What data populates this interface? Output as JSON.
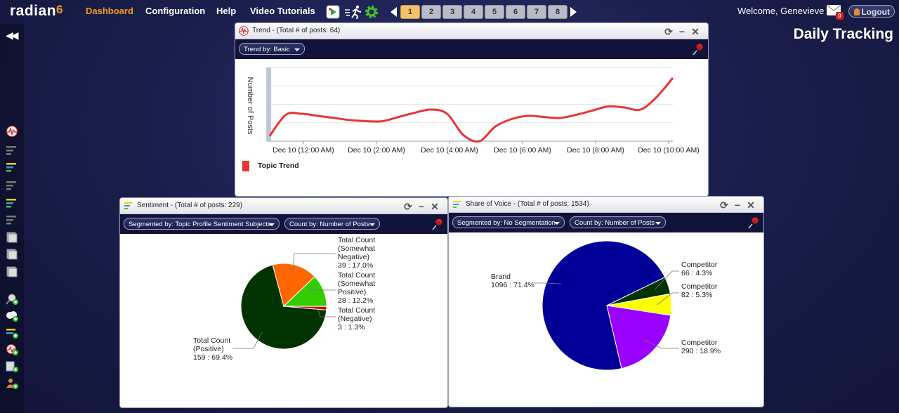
{
  "app": {
    "logo": "radian",
    "logo_suffix": "6"
  },
  "nav": {
    "dashboard": "Dashboard",
    "configuration": "Configuration",
    "help": "Help",
    "video_tutorials": "Video Tutorials"
  },
  "pages": [
    "1",
    "2",
    "3",
    "4",
    "5",
    "6",
    "7",
    "8"
  ],
  "active_page": "1",
  "user": {
    "welcome": "Welcome, Genevieve",
    "mail_count": "0",
    "logout": "Logout"
  },
  "page_title": "Daily Tracking",
  "trend": {
    "title": "Trend - (Total # of posts: 64)",
    "dropdown": "Trend by: Basic",
    "legend": "Topic Trend",
    "line_color": "#e83535",
    "chart_data": {
      "type": "line",
      "ylabel": "Number of Posts",
      "x_tick_labels": [
        "Dec 10 (12:00 AM)",
        "Dec 10 (2:00 AM)",
        "Dec 10 (4:00 AM)",
        "Dec 10 (6:00 AM)",
        "Dec 10 (8:00 AM)",
        "Dec 10 (10:00 AM)"
      ],
      "series": [
        {
          "name": "Topic Trend",
          "x": [
            0,
            1,
            2,
            3,
            4,
            5,
            6,
            7,
            8,
            9,
            10,
            11,
            12,
            13,
            14,
            15,
            16,
            17,
            18,
            19,
            20,
            21,
            22,
            23,
            24,
            25
          ],
          "values": [
            0.5,
            2.5,
            2.6,
            2.4,
            2.2,
            2.0,
            1.9,
            1.9,
            2.3,
            2.7,
            3.0,
            2.6,
            0.6,
            0.0,
            1.4,
            2.1,
            2.4,
            2.3,
            2.2,
            2.5,
            2.9,
            3.3,
            3.2,
            3.0,
            4.2,
            6.0
          ]
        }
      ],
      "ylim": [
        0,
        7
      ]
    }
  },
  "sentiment": {
    "title": "Sentiment - (Total # of posts: 229)",
    "dropdown1": "Segmented by: Topic Profile Sentiment Subjects",
    "dropdown2": "Count by: Number of Posts",
    "chart_data": {
      "type": "pie",
      "slices": [
        {
          "label_lines": [
            "Total Count",
            "(Positive)",
            "159 : 69.4%"
          ],
          "value": 159,
          "color": "#003300"
        },
        {
          "label_lines": [
            "Total Count",
            "(Somewhat",
            "Negative)",
            "39 : 17.0%"
          ],
          "value": 39,
          "color": "#ff6600"
        },
        {
          "label_lines": [
            "Total Count",
            "(Somewhat",
            "Positive)",
            "28 : 12.2%"
          ],
          "value": 28,
          "color": "#33cc00"
        },
        {
          "label_lines": [
            "Total Count",
            "(Negative)",
            "3 : 1.3%"
          ],
          "value": 3,
          "color": "#cc0000"
        }
      ]
    }
  },
  "sov": {
    "title": "Share of Voice - (Total # of posts: 1534)",
    "dropdown1": "Segmented by: No Segmentation",
    "dropdown2": "Count by: Number of Posts",
    "chart_data": {
      "type": "pie",
      "slices": [
        {
          "label_lines": [
            "Brand",
            "1096 : 71.4%"
          ],
          "value": 1096,
          "color": "#000099"
        },
        {
          "label_lines": [
            "Competitor",
            "66 : 4.3%"
          ],
          "value": 66,
          "color": "#003300"
        },
        {
          "label_lines": [
            "Competitor",
            "82 : 5.3%"
          ],
          "value": 82,
          "color": "#ffff00"
        },
        {
          "label_lines": [
            "Competitor",
            "290 : 18.9%"
          ],
          "value": 290,
          "color": "#9900ff"
        }
      ]
    }
  }
}
